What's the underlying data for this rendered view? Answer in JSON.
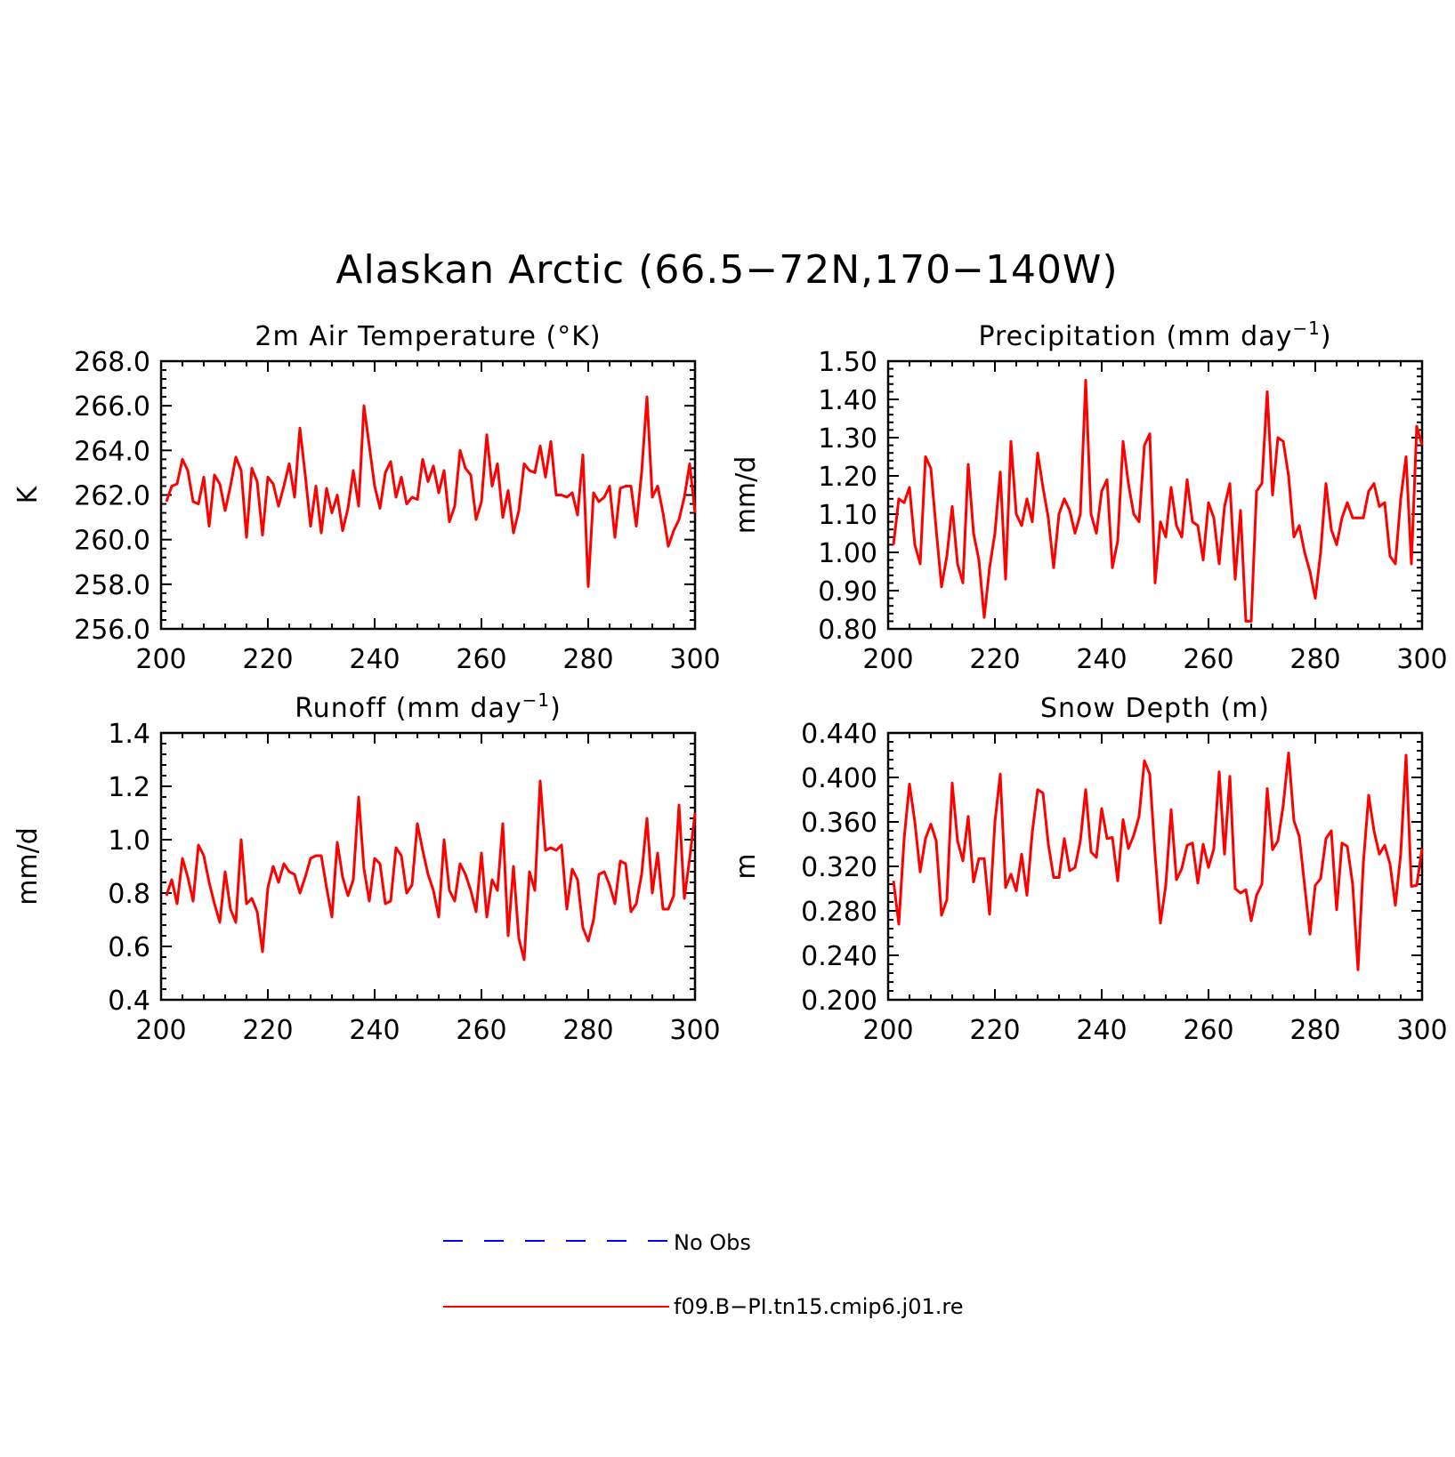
{
  "figure": {
    "title": "Alaskan Arctic (66.5−72N,170−140W)",
    "line_color": "#ff0000",
    "obs_color": "#0000ff"
  },
  "legend": [
    {
      "label": "No Obs",
      "style": "dashed",
      "color": "#0000ff"
    },
    {
      "label": "f09.B−PI.tn15.cmip6.j01.re",
      "style": "solid",
      "color": "#ff0000"
    }
  ],
  "chart_data": [
    {
      "type": "line",
      "title": "2m Air Temperature (°K)",
      "title_sup": "",
      "title_tail": "",
      "ylabel": "K",
      "xlim": [
        200,
        300
      ],
      "ylim": [
        256,
        268
      ],
      "xticks": [
        "200",
        "220",
        "240",
        "260",
        "280",
        "300"
      ],
      "yticks": [
        "256.0",
        "258.0",
        "260.0",
        "262.0",
        "264.0",
        "266.0",
        "268.0"
      ],
      "series": [
        {
          "x_start": 201,
          "values": [
            261.7,
            262.4,
            262.5,
            263.6,
            263.1,
            261.7,
            261.6,
            262.8,
            260.6,
            262.9,
            262.5,
            261.3,
            262.4,
            263.7,
            263.1,
            260.1,
            263.2,
            262.6,
            260.2,
            262.8,
            262.5,
            261.5,
            262.4,
            263.4,
            261.9,
            265.0,
            262.9,
            260.6,
            262.4,
            260.3,
            262.3,
            261.2,
            262.0,
            260.4,
            261.4,
            263.1,
            261.5,
            266.0,
            264.2,
            262.4,
            261.4,
            263.0,
            263.5,
            261.9,
            262.8,
            261.6,
            261.9,
            261.8,
            263.6,
            262.6,
            263.3,
            262.1,
            263.1,
            260.8,
            261.5,
            264.0,
            263.2,
            262.9,
            260.9,
            261.7,
            264.7,
            262.4,
            263.4,
            261.0,
            262.2,
            260.3,
            261.3,
            263.4,
            263.1,
            263.0,
            264.2,
            262.8,
            264.4,
            262.0,
            262.0,
            261.9,
            262.1,
            261.1,
            263.8,
            257.9,
            262.1,
            261.7,
            261.9,
            262.4,
            260.1,
            262.3,
            262.4,
            262.4,
            260.6,
            263.0,
            266.4,
            261.9,
            262.4,
            261.2,
            259.7,
            260.4,
            260.9,
            261.9,
            263.4,
            261.2
          ]
        }
      ]
    },
    {
      "type": "line",
      "title": "Precipitation (mm day",
      "title_sup": "−1",
      "title_tail": ")",
      "ylabel": "mm/d",
      "xlim": [
        200,
        300
      ],
      "ylim": [
        0.8,
        1.5
      ],
      "xticks": [
        "200",
        "220",
        "240",
        "260",
        "280",
        "300"
      ],
      "yticks": [
        "0.80",
        "0.90",
        "1.00",
        "1.10",
        "1.20",
        "1.30",
        "1.40",
        "1.50"
      ],
      "series": [
        {
          "x_start": 201,
          "values": [
            1.02,
            1.14,
            1.13,
            1.17,
            1.02,
            0.97,
            1.25,
            1.22,
            1.06,
            0.91,
            0.99,
            1.12,
            0.97,
            0.92,
            1.23,
            1.05,
            0.98,
            0.83,
            0.96,
            1.05,
            1.21,
            0.93,
            1.29,
            1.1,
            1.07,
            1.14,
            1.08,
            1.26,
            1.17,
            1.09,
            0.96,
            1.1,
            1.14,
            1.11,
            1.05,
            1.1,
            1.45,
            1.1,
            1.05,
            1.16,
            1.19,
            0.96,
            1.03,
            1.29,
            1.18,
            1.1,
            1.08,
            1.28,
            1.31,
            0.92,
            1.08,
            1.04,
            1.17,
            1.07,
            1.04,
            1.19,
            1.08,
            1.07,
            0.98,
            1.13,
            1.09,
            0.97,
            1.12,
            1.18,
            0.93,
            1.11,
            0.82,
            0.82,
            1.16,
            1.18,
            1.42,
            1.15,
            1.3,
            1.29,
            1.2,
            1.04,
            1.07,
            1.0,
            0.95,
            0.88,
            1.0,
            1.18,
            1.06,
            1.02,
            1.09,
            1.13,
            1.09,
            1.09,
            1.09,
            1.16,
            1.18,
            1.12,
            1.13,
            0.99,
            0.97,
            1.14,
            1.25,
            0.97,
            1.33,
            1.28
          ]
        }
      ]
    },
    {
      "type": "line",
      "title": "Runoff (mm day",
      "title_sup": "−1",
      "title_tail": ")",
      "ylabel": "mm/d",
      "xlim": [
        200,
        300
      ],
      "ylim": [
        0.4,
        1.4
      ],
      "xticks": [
        "200",
        "220",
        "240",
        "260",
        "280",
        "300"
      ],
      "yticks": [
        "0.4",
        "0.6",
        "0.8",
        "1.0",
        "1.2",
        "1.4"
      ],
      "series": [
        {
          "x_start": 201,
          "values": [
            0.79,
            0.85,
            0.76,
            0.93,
            0.86,
            0.77,
            0.98,
            0.94,
            0.84,
            0.76,
            0.69,
            0.88,
            0.74,
            0.69,
            1.0,
            0.76,
            0.78,
            0.73,
            0.58,
            0.82,
            0.9,
            0.84,
            0.91,
            0.88,
            0.87,
            0.8,
            0.86,
            0.93,
            0.94,
            0.94,
            0.82,
            0.71,
            0.99,
            0.86,
            0.79,
            0.85,
            1.16,
            0.89,
            0.77,
            0.93,
            0.91,
            0.76,
            0.77,
            0.97,
            0.94,
            0.8,
            0.83,
            1.06,
            0.96,
            0.87,
            0.81,
            0.71,
            1.0,
            0.81,
            0.77,
            0.91,
            0.87,
            0.81,
            0.73,
            0.95,
            0.71,
            0.85,
            0.81,
            1.06,
            0.64,
            0.9,
            0.63,
            0.55,
            0.88,
            0.81,
            1.22,
            0.96,
            0.97,
            0.96,
            0.98,
            0.74,
            0.89,
            0.85,
            0.67,
            0.62,
            0.7,
            0.87,
            0.88,
            0.83,
            0.76,
            0.92,
            0.91,
            0.73,
            0.76,
            0.87,
            1.08,
            0.8,
            0.95,
            0.74,
            0.74,
            0.79,
            1.13,
            0.78,
            0.93,
            1.1
          ]
        }
      ]
    },
    {
      "type": "line",
      "title": "Snow Depth (m)",
      "title_sup": "",
      "title_tail": "",
      "ylabel": "m",
      "xlim": [
        200,
        300
      ],
      "ylim": [
        0.2,
        0.44
      ],
      "xticks": [
        "200",
        "220",
        "240",
        "260",
        "280",
        "300"
      ],
      "yticks": [
        "0.200",
        "0.240",
        "0.280",
        "0.320",
        "0.360",
        "0.400",
        "0.440"
      ],
      "series": [
        {
          "x_start": 201,
          "values": [
            0.307,
            0.268,
            0.345,
            0.394,
            0.36,
            0.315,
            0.345,
            0.358,
            0.343,
            0.276,
            0.29,
            0.395,
            0.343,
            0.325,
            0.365,
            0.306,
            0.327,
            0.327,
            0.277,
            0.36,
            0.403,
            0.301,
            0.313,
            0.298,
            0.331,
            0.294,
            0.351,
            0.389,
            0.386,
            0.34,
            0.31,
            0.31,
            0.345,
            0.316,
            0.319,
            0.343,
            0.389,
            0.333,
            0.328,
            0.372,
            0.345,
            0.346,
            0.307,
            0.362,
            0.336,
            0.348,
            0.365,
            0.415,
            0.403,
            0.33,
            0.269,
            0.303,
            0.371,
            0.308,
            0.318,
            0.339,
            0.341,
            0.305,
            0.34,
            0.319,
            0.336,
            0.405,
            0.331,
            0.401,
            0.3,
            0.296,
            0.299,
            0.271,
            0.294,
            0.304,
            0.39,
            0.335,
            0.343,
            0.375,
            0.422,
            0.361,
            0.347,
            0.303,
            0.259,
            0.303,
            0.309,
            0.345,
            0.352,
            0.281,
            0.341,
            0.338,
            0.304,
            0.227,
            0.323,
            0.384,
            0.352,
            0.331,
            0.339,
            0.322,
            0.285,
            0.331,
            0.42,
            0.302,
            0.303,
            0.336
          ]
        }
      ]
    }
  ]
}
